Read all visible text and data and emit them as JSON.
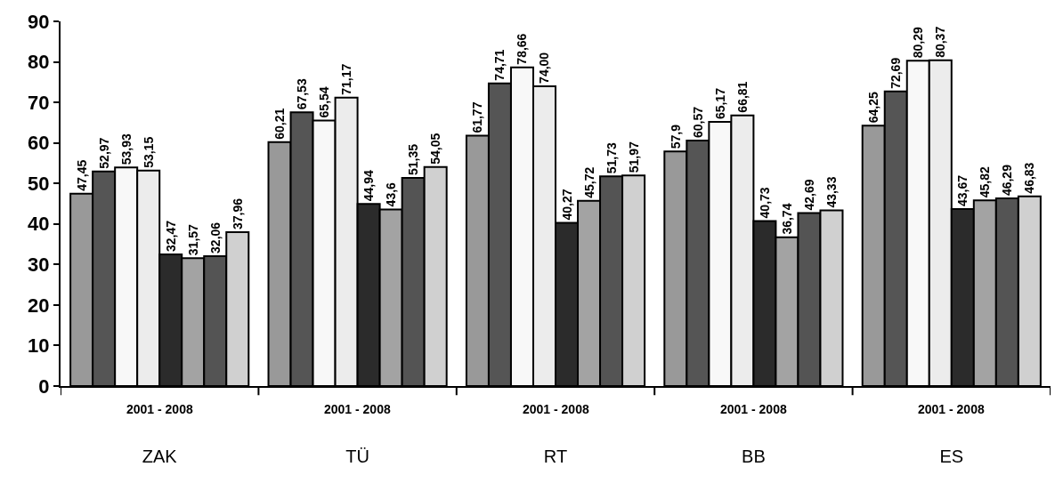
{
  "chart_data": {
    "type": "bar",
    "categories": [
      "ZAK",
      "TÜ",
      "RT",
      "BB",
      "ES"
    ],
    "series": [
      {
        "color": "#999999",
        "values": [
          47.45,
          60.21,
          61.77,
          57.9,
          64.25
        ],
        "value_labels": [
          "47,45",
          "60,21",
          "61,77",
          "57,9",
          "64,25"
        ]
      },
      {
        "color": "#555555",
        "values": [
          52.97,
          67.53,
          74.71,
          60.57,
          72.69
        ],
        "value_labels": [
          "52,97",
          "67,53",
          "74,71",
          "60,57",
          "72,69"
        ]
      },
      {
        "color": "#f8f8f8",
        "values": [
          53.93,
          65.54,
          78.66,
          65.17,
          80.29
        ],
        "value_labels": [
          "53,93",
          "65,54",
          "78,66",
          "65,17",
          "80,29"
        ]
      },
      {
        "color": "#ececec",
        "values": [
          53.15,
          71.17,
          74.0,
          66.81,
          80.37
        ],
        "value_labels": [
          "53,15",
          "71,17",
          "74,00",
          "66,81",
          "80,37"
        ]
      },
      {
        "color": "#2b2b2b",
        "values": [
          32.47,
          44.94,
          40.27,
          40.73,
          43.67
        ],
        "value_labels": [
          "32,47",
          "44,94",
          "40,27",
          "40,73",
          "43,67"
        ]
      },
      {
        "color": "#a3a3a3",
        "values": [
          31.57,
          43.6,
          45.72,
          36.74,
          45.82
        ],
        "value_labels": [
          "31,57",
          "43,6",
          "45,72",
          "36,74",
          "45,82"
        ]
      },
      {
        "color": "#545454",
        "values": [
          32.06,
          51.35,
          51.73,
          42.69,
          46.29
        ],
        "value_labels": [
          "32,06",
          "51,35",
          "51,73",
          "42,69",
          "46,29"
        ]
      },
      {
        "color": "#d0d0d0",
        "values": [
          37.96,
          54.05,
          51.97,
          43.33,
          46.83
        ],
        "value_labels": [
          "37,96",
          "54,05",
          "51,97",
          "43,33",
          "46,83"
        ]
      }
    ],
    "ylim": [
      0,
      90
    ],
    "yticks": [
      0,
      10,
      20,
      30,
      40,
      50,
      60,
      70,
      80,
      90
    ],
    "annotations": [
      "2001 - 2008",
      "2001 - 2008",
      "2001 - 2008",
      "2001 - 2008",
      "2001 - 2008"
    ]
  }
}
